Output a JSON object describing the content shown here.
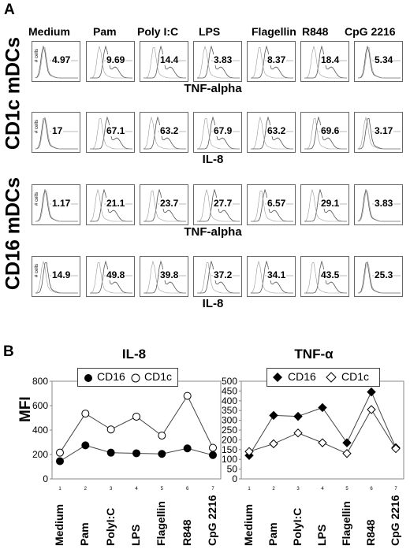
{
  "panelA": {
    "letter": "A",
    "conditions": [
      "Medium",
      "Pam",
      "Poly I:C",
      "LPS",
      "Flagellin",
      "R848",
      "CpG 2216"
    ],
    "hist_ylabel": "# cells",
    "groups": [
      {
        "label": "CD1c mDCs",
        "rows": [
          {
            "measure": "TNF-alpha",
            "values": [
              "4.97",
              "9.69",
              "14.4",
              "3.83",
              "8.37",
              "18.4",
              "5.34"
            ]
          },
          {
            "measure": "IL-8",
            "values": [
              "17",
              "67.1",
              "63.2",
              "67.9",
              "63.2",
              "69.6",
              "3.17"
            ]
          }
        ]
      },
      {
        "label": "CD16 mDCs",
        "rows": [
          {
            "measure": "TNF-alpha",
            "values": [
              "1.17",
              "21.1",
              "23.7",
              "27.7",
              "6.57",
              "29.1",
              "3.83"
            ]
          },
          {
            "measure": "IL-8",
            "values": [
              "14.9",
              "49.8",
              "39.8",
              "37.2",
              "34.1",
              "43.5",
              "25.3"
            ]
          }
        ]
      }
    ]
  },
  "panelB": {
    "letter": "B",
    "ylabel": "MFI",
    "categories": [
      "Medium",
      "Pam",
      "PolyI:C",
      "LPS",
      "Flagellin",
      "R848",
      "CpG 2216"
    ],
    "tick_numbers": [
      "1",
      "2",
      "3",
      "4",
      "5",
      "6",
      "7"
    ]
  },
  "chart_data": [
    {
      "type": "line",
      "title": "IL-8",
      "ylabel": "MFI",
      "categories": [
        "Medium",
        "Pam",
        "PolyI:C",
        "LPS",
        "Flagellin",
        "R848",
        "CpG 2216"
      ],
      "x": [
        1,
        2,
        3,
        4,
        5,
        6,
        7
      ],
      "yticks": [
        "0",
        "200",
        "400",
        "600",
        "800"
      ],
      "ylim": [
        0,
        800
      ],
      "legend": "top",
      "series": [
        {
          "name": "CD16",
          "marker": "filled-circle",
          "color": "#000000",
          "values": [
            145,
            275,
            215,
            210,
            205,
            250,
            195
          ]
        },
        {
          "name": "CD1c",
          "marker": "open-circle",
          "color": "#000000",
          "values": [
            215,
            535,
            405,
            510,
            355,
            680,
            255
          ]
        }
      ]
    },
    {
      "type": "line",
      "title": "TNF-α",
      "ylabel": "",
      "categories": [
        "Medium",
        "Pam",
        "PolyI:C",
        "LPS",
        "Flagellin",
        "R848",
        "CpG 2216"
      ],
      "x": [
        1,
        2,
        3,
        4,
        5,
        6,
        7
      ],
      "yticks": [
        "0",
        "50",
        "100",
        "150",
        "200",
        "250",
        "300",
        "350",
        "400",
        "450",
        "500"
      ],
      "ylim": [
        0,
        500
      ],
      "legend": "top",
      "series": [
        {
          "name": "CD16",
          "marker": "filled-diamond",
          "color": "#000000",
          "values": [
            120,
            325,
            320,
            365,
            185,
            445,
            160
          ]
        },
        {
          "name": "CD1c",
          "marker": "open-diamond",
          "color": "#000000",
          "values": [
            140,
            180,
            235,
            185,
            130,
            355,
            155
          ]
        }
      ]
    }
  ]
}
